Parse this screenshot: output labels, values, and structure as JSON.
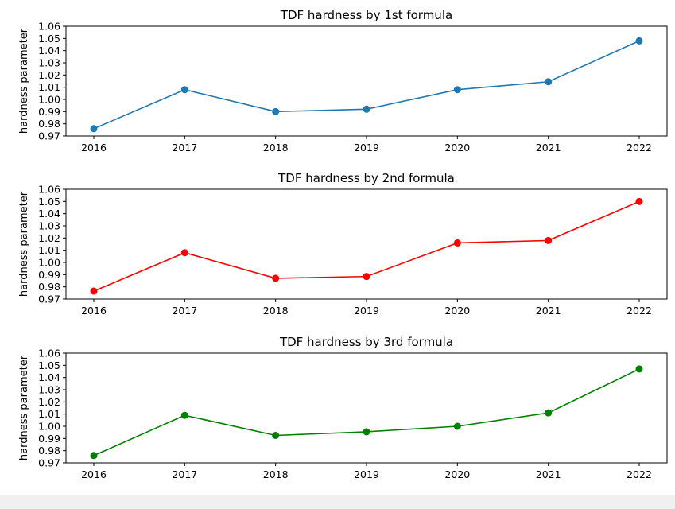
{
  "chart_data": [
    {
      "type": "line",
      "title": "TDF hardness by 1st formula",
      "xlabel": "",
      "ylabel": "hardness parameter",
      "x": [
        "2016",
        "2017",
        "2018",
        "2019",
        "2020",
        "2021",
        "2022"
      ],
      "series": [
        {
          "values": [
            0.976,
            1.008,
            0.99,
            0.992,
            1.008,
            1.0145,
            1.048
          ],
          "color": "#1f77b4"
        }
      ],
      "yticks": [
        "0.97",
        "0.98",
        "0.99",
        "1.00",
        "1.01",
        "1.02",
        "1.03",
        "1.04",
        "1.05",
        "1.06"
      ],
      "ylim": [
        0.97,
        1.06
      ],
      "grid": false
    },
    {
      "type": "line",
      "title": "TDF hardness by 2nd formula",
      "xlabel": "",
      "ylabel": "hardness parameter",
      "x": [
        "2016",
        "2017",
        "2018",
        "2019",
        "2020",
        "2021",
        "2022"
      ],
      "series": [
        {
          "values": [
            0.9765,
            1.008,
            0.987,
            0.9885,
            1.016,
            1.018,
            1.05
          ],
          "color": "#ff0000"
        }
      ],
      "yticks": [
        "0.97",
        "0.98",
        "0.99",
        "1.00",
        "1.01",
        "1.02",
        "1.03",
        "1.04",
        "1.05",
        "1.06"
      ],
      "ylim": [
        0.97,
        1.06
      ],
      "grid": false
    },
    {
      "type": "line",
      "title": "TDF hardness by 3rd formula",
      "xlabel": "",
      "ylabel": "hardness parameter",
      "x": [
        "2016",
        "2017",
        "2018",
        "2019",
        "2020",
        "2021",
        "2022"
      ],
      "series": [
        {
          "values": [
            0.976,
            1.009,
            0.9925,
            0.9955,
            1.0,
            1.011,
            1.047
          ],
          "color": "#008000"
        }
      ],
      "yticks": [
        "0.97",
        "0.98",
        "0.99",
        "1.00",
        "1.01",
        "1.02",
        "1.03",
        "1.04",
        "1.05",
        "1.06"
      ],
      "ylim": [
        0.97,
        1.06
      ],
      "grid": false
    }
  ]
}
